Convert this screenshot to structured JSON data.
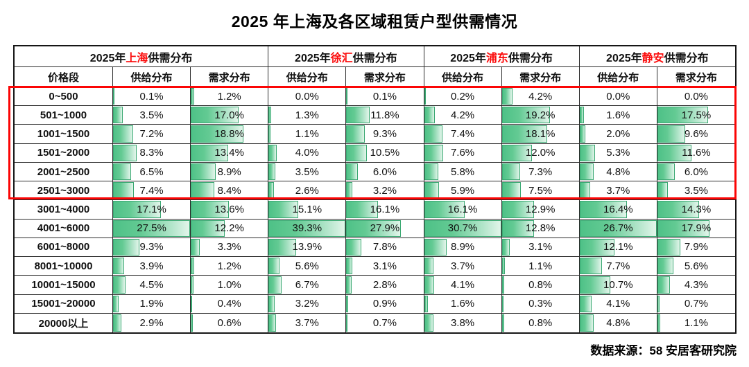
{
  "title": "2025 年上海及各区域租赁户型供需情况",
  "source": "数据来源：58 安居客研究院",
  "table": {
    "price_header": "价格段",
    "supply_header": "供给分布",
    "demand_header": "需求分布",
    "regions": [
      {
        "parts": [
          "2025年",
          "上海",
          "供需分布"
        ]
      },
      {
        "parts": [
          "2025年",
          "徐汇",
          "供需分布"
        ]
      },
      {
        "parts": [
          "2025年",
          "浦东",
          "供需分布"
        ]
      },
      {
        "parts": [
          "2025年",
          "静安",
          "供需分布"
        ]
      }
    ]
  },
  "colors": {
    "bar_border": "#3aa872",
    "bar_fill_start": "#4ec187",
    "bar_fill_end": "#e2f5ea",
    "highlight_border": "#fb0505",
    "region_name_red": "#fb0d0d"
  },
  "chart_data": {
    "type": "table",
    "title": "2025 年上海及各区域租赁户型供需情况",
    "categories": [
      "0~500",
      "501~1000",
      "1001~1500",
      "1501~2000",
      "2001~2500",
      "2501~3000",
      "3001~4000",
      "4001~6000",
      "6001~8000",
      "8001~10000",
      "10001~15000",
      "15001~20000",
      "20000以上"
    ],
    "series": [
      {
        "name": "上海供给分布",
        "values": [
          0.1,
          3.5,
          7.2,
          8.3,
          6.5,
          7.4,
          17.1,
          27.5,
          9.3,
          3.9,
          4.5,
          1.9,
          2.9
        ]
      },
      {
        "name": "上海需求分布",
        "values": [
          1.2,
          17.0,
          18.8,
          13.4,
          8.9,
          8.4,
          13.6,
          12.2,
          3.3,
          1.2,
          1.0,
          0.4,
          0.6
        ]
      },
      {
        "name": "徐汇供给分布",
        "values": [
          0.0,
          1.3,
          1.1,
          4.0,
          3.5,
          2.6,
          15.1,
          39.3,
          13.9,
          5.6,
          6.7,
          3.2,
          3.7
        ]
      },
      {
        "name": "徐汇需求分布",
        "values": [
          0.1,
          11.8,
          9.3,
          10.5,
          6.0,
          3.2,
          16.1,
          27.9,
          7.8,
          3.1,
          2.8,
          0.9,
          0.7
        ]
      },
      {
        "name": "浦东供给分布",
        "values": [
          0.2,
          4.2,
          7.4,
          7.6,
          5.8,
          5.9,
          16.1,
          30.7,
          8.9,
          3.7,
          4.1,
          1.6,
          3.8
        ]
      },
      {
        "name": "浦东需求分布",
        "values": [
          4.2,
          19.2,
          18.1,
          12.0,
          7.3,
          7.5,
          12.9,
          12.8,
          3.1,
          1.1,
          0.8,
          0.3,
          0.8
        ]
      },
      {
        "name": "静安供给分布",
        "values": [
          0.0,
          1.6,
          2.0,
          5.3,
          4.8,
          3.7,
          16.4,
          26.7,
          12.1,
          7.7,
          10.7,
          4.1,
          4.8
        ]
      },
      {
        "name": "静安需求分布",
        "values": [
          0.0,
          17.5,
          9.6,
          11.6,
          6.0,
          3.5,
          14.3,
          17.9,
          7.9,
          5.6,
          4.3,
          0.7,
          1.1
        ]
      }
    ],
    "value_unit": "%",
    "bar_scale": "per-region pair, bar width = value / region max",
    "highlighted_categories": [
      "0~500",
      "501~1000",
      "1001~1500",
      "1501~2000",
      "2001~2500",
      "2501~3000"
    ],
    "source": "数据来源：58 安居客研究院"
  }
}
